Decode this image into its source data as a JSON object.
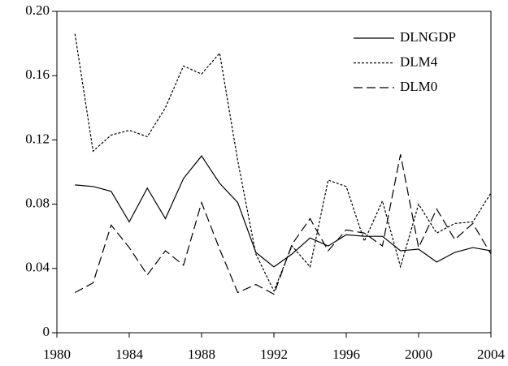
{
  "chart_data": {
    "type": "line",
    "x": [
      1981,
      1982,
      1983,
      1984,
      1985,
      1986,
      1987,
      1988,
      1989,
      1990,
      1991,
      1992,
      1993,
      1994,
      1995,
      1996,
      1997,
      1998,
      1999,
      2000,
      2001,
      2002,
      2003,
      2004
    ],
    "series": [
      {
        "name": "DLNGDP",
        "color": "#000000",
        "style": "solid",
        "values": [
          0.092,
          0.091,
          0.088,
          0.069,
          0.09,
          0.071,
          0.096,
          0.11,
          0.093,
          0.081,
          0.05,
          0.041,
          0.049,
          0.059,
          0.054,
          0.061,
          0.06,
          0.06,
          0.051,
          0.052,
          0.044,
          0.05,
          0.053,
          0.051
        ]
      },
      {
        "name": "DLM4",
        "color": "#000000",
        "style": "dotted",
        "values": [
          0.186,
          0.113,
          0.123,
          0.126,
          0.122,
          0.14,
          0.166,
          0.161,
          0.174,
          0.107,
          0.049,
          0.026,
          0.054,
          0.041,
          0.095,
          0.091,
          0.057,
          0.082,
          0.041,
          0.08,
          0.062,
          0.068,
          0.069,
          0.087
        ]
      },
      {
        "name": "DLM0",
        "color": "#000000",
        "style": "dashed",
        "values": [
          0.025,
          0.031,
          0.067,
          0.053,
          0.036,
          0.051,
          0.042,
          0.081,
          0.052,
          0.025,
          0.03,
          0.024,
          0.055,
          0.071,
          0.051,
          0.064,
          0.062,
          0.054,
          0.111,
          0.053,
          0.077,
          0.058,
          0.068,
          0.049
        ]
      }
    ],
    "xlim": [
      1980,
      2004
    ],
    "xticks": [
      1980,
      1984,
      1988,
      1992,
      1996,
      2000,
      2004
    ],
    "ylim": [
      0,
      0.2
    ],
    "yticks": [
      0,
      0.04,
      0.08,
      0.12,
      0.16,
      {
        "value": 0.2,
        "label": "0.20"
      }
    ],
    "legend": "top-right"
  }
}
